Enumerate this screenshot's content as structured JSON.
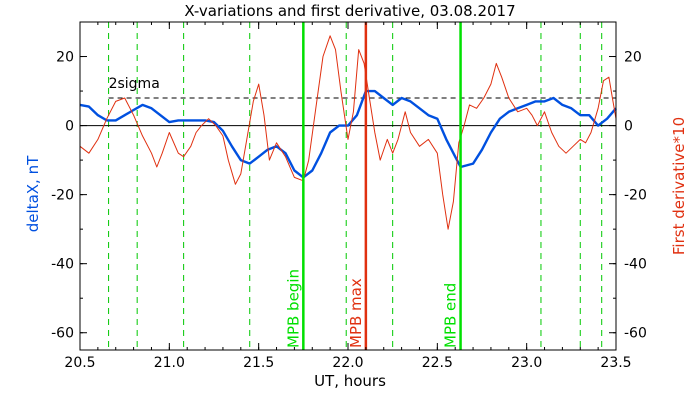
{
  "chart_data": {
    "type": "line",
    "title": "X-variations and first derivative, 03.08.2017",
    "xlabel": "UT, hours",
    "ylabel_left": "deltaX, nT",
    "ylabel_right": "First derivative*10",
    "xlim": [
      20.5,
      23.5
    ],
    "ylim": [
      -65,
      30
    ],
    "x_ticks": [
      "20.5",
      "21.0",
      "21.5",
      "22.0",
      "22.5",
      "23.0",
      "23.5"
    ],
    "x_tick_values": [
      20.5,
      21.0,
      21.5,
      22.0,
      22.5,
      23.0,
      23.5
    ],
    "y_ticks": [
      "20",
      "0",
      "-20",
      "-40",
      "-60"
    ],
    "y_tick_values": [
      20,
      0,
      -20,
      -40,
      -60
    ],
    "sigma_label": "2sigma",
    "sigma_value": 8,
    "green_dashed_x": [
      20.66,
      20.82,
      21.08,
      21.45,
      21.99,
      22.25,
      23.08,
      23.3,
      23.42
    ],
    "vertical_markers": [
      {
        "label": "MPB begin",
        "x": 21.75,
        "color": "#00e000"
      },
      {
        "label": "MPB max",
        "x": 22.1,
        "color": "#e03010"
      },
      {
        "label": "MPB end",
        "x": 22.63,
        "color": "#00e000"
      }
    ],
    "series": [
      {
        "name": "deltaX",
        "color": "#0050e0",
        "points": [
          [
            20.5,
            6
          ],
          [
            20.55,
            5.5
          ],
          [
            20.6,
            3
          ],
          [
            20.65,
            1.5
          ],
          [
            20.7,
            1.5
          ],
          [
            20.75,
            3
          ],
          [
            20.8,
            4.5
          ],
          [
            20.85,
            6
          ],
          [
            20.9,
            5
          ],
          [
            20.95,
            3
          ],
          [
            21.0,
            1
          ],
          [
            21.05,
            1.5
          ],
          [
            21.1,
            1.5
          ],
          [
            21.2,
            1.5
          ],
          [
            21.25,
            1
          ],
          [
            21.3,
            -1.5
          ],
          [
            21.35,
            -6
          ],
          [
            21.4,
            -10
          ],
          [
            21.45,
            -11
          ],
          [
            21.5,
            -9
          ],
          [
            21.55,
            -7
          ],
          [
            21.6,
            -6
          ],
          [
            21.65,
            -8
          ],
          [
            21.7,
            -13
          ],
          [
            21.75,
            -15
          ],
          [
            21.8,
            -13
          ],
          [
            21.85,
            -8
          ],
          [
            21.9,
            -2
          ],
          [
            21.95,
            0
          ],
          [
            22.0,
            0
          ],
          [
            22.05,
            3
          ],
          [
            22.1,
            10
          ],
          [
            22.15,
            10
          ],
          [
            22.2,
            8
          ],
          [
            22.25,
            6
          ],
          [
            22.3,
            8
          ],
          [
            22.35,
            7
          ],
          [
            22.4,
            5
          ],
          [
            22.45,
            3
          ],
          [
            22.5,
            2
          ],
          [
            22.55,
            -4
          ],
          [
            22.6,
            -9
          ],
          [
            22.63,
            -12
          ],
          [
            22.7,
            -11
          ],
          [
            22.75,
            -7
          ],
          [
            22.8,
            -2
          ],
          [
            22.85,
            2
          ],
          [
            22.9,
            4
          ],
          [
            22.95,
            5
          ],
          [
            23.0,
            6
          ],
          [
            23.05,
            7
          ],
          [
            23.1,
            7
          ],
          [
            23.15,
            8
          ],
          [
            23.2,
            6
          ],
          [
            23.25,
            5
          ],
          [
            23.3,
            3
          ],
          [
            23.35,
            3
          ],
          [
            23.4,
            0
          ],
          [
            23.45,
            2
          ],
          [
            23.5,
            5
          ]
        ]
      },
      {
        "name": "First derivative*10",
        "color": "#e03010",
        "points": [
          [
            20.5,
            -6
          ],
          [
            20.55,
            -8
          ],
          [
            20.6,
            -4
          ],
          [
            20.65,
            2
          ],
          [
            20.7,
            7
          ],
          [
            20.75,
            8
          ],
          [
            20.8,
            3
          ],
          [
            20.85,
            -3
          ],
          [
            20.9,
            -8
          ],
          [
            20.93,
            -12
          ],
          [
            20.96,
            -8
          ],
          [
            21.0,
            -2
          ],
          [
            21.05,
            -8
          ],
          [
            21.08,
            -9
          ],
          [
            21.12,
            -6
          ],
          [
            21.15,
            -2
          ],
          [
            21.18,
            0
          ],
          [
            21.22,
            2
          ],
          [
            21.26,
            0
          ],
          [
            21.3,
            -3
          ],
          [
            21.33,
            -10
          ],
          [
            21.37,
            -17
          ],
          [
            21.4,
            -14
          ],
          [
            21.43,
            -5
          ],
          [
            21.47,
            7
          ],
          [
            21.5,
            12
          ],
          [
            21.53,
            3
          ],
          [
            21.56,
            -10
          ],
          [
            21.6,
            -5
          ],
          [
            21.65,
            -9
          ],
          [
            21.7,
            -15
          ],
          [
            21.75,
            -16
          ],
          [
            21.78,
            -10
          ],
          [
            21.82,
            5
          ],
          [
            21.86,
            20
          ],
          [
            21.9,
            26
          ],
          [
            21.93,
            22
          ],
          [
            21.96,
            10
          ],
          [
            22.0,
            -4
          ],
          [
            22.03,
            4
          ],
          [
            22.06,
            22
          ],
          [
            22.09,
            18
          ],
          [
            22.12,
            8
          ],
          [
            22.15,
            -2
          ],
          [
            22.18,
            -10
          ],
          [
            22.22,
            -4
          ],
          [
            22.25,
            -8
          ],
          [
            22.28,
            -4
          ],
          [
            22.32,
            4
          ],
          [
            22.35,
            -2
          ],
          [
            22.4,
            -6
          ],
          [
            22.45,
            -4
          ],
          [
            22.5,
            -8
          ],
          [
            22.53,
            -20
          ],
          [
            22.56,
            -30
          ],
          [
            22.59,
            -22
          ],
          [
            22.62,
            -5
          ],
          [
            22.65,
            0
          ],
          [
            22.68,
            6
          ],
          [
            22.72,
            5
          ],
          [
            22.76,
            8
          ],
          [
            22.8,
            12
          ],
          [
            22.83,
            18
          ],
          [
            22.86,
            14
          ],
          [
            22.9,
            8
          ],
          [
            22.95,
            4
          ],
          [
            23.0,
            5
          ],
          [
            23.03,
            3
          ],
          [
            23.06,
            0
          ],
          [
            23.1,
            4
          ],
          [
            23.14,
            -2
          ],
          [
            23.18,
            -6
          ],
          [
            23.22,
            -8
          ],
          [
            23.26,
            -6
          ],
          [
            23.3,
            -4
          ],
          [
            23.33,
            -5
          ],
          [
            23.36,
            -2
          ],
          [
            23.4,
            5
          ],
          [
            23.43,
            13
          ],
          [
            23.46,
            14
          ],
          [
            23.48,
            8
          ],
          [
            23.5,
            2
          ]
        ]
      }
    ]
  }
}
